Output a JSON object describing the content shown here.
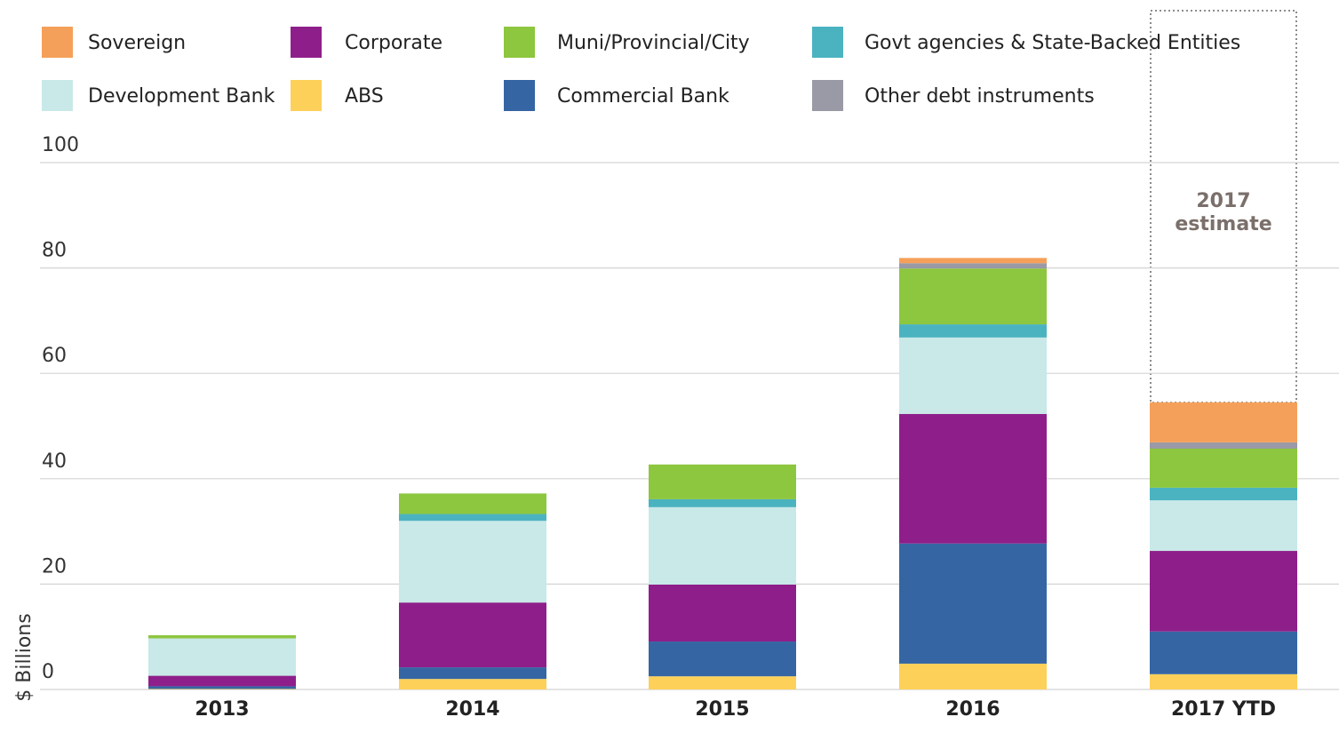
{
  "chart_data": {
    "type": "stacked_bar",
    "y_label": "$ Billions",
    "annotation": "2017 estimate",
    "categories": [
      "2013",
      "2014",
      "2015",
      "2016",
      "2017 YTD"
    ],
    "ylim": [
      0,
      100
    ],
    "yticks": [
      0,
      20,
      40,
      60,
      80,
      100
    ],
    "grid": true,
    "series": [
      {
        "name": "ABS",
        "color": "#fdd05a",
        "values": [
          0.1,
          2.0,
          2.5,
          4.9,
          2.9
        ]
      },
      {
        "name": "Commercial Bank",
        "color": "#3566a3",
        "values": [
          0.5,
          2.2,
          6.6,
          22.8,
          8.1
        ]
      },
      {
        "name": "Corporate",
        "color": "#8e1f8a",
        "values": [
          2.0,
          12.3,
          10.8,
          24.6,
          15.3
        ]
      },
      {
        "name": "Development Bank",
        "color": "#c9e8e8",
        "values": [
          7.1,
          15.5,
          14.7,
          14.5,
          9.6
        ]
      },
      {
        "name": "Govt agencies & State-Backed Entities",
        "color": "#4bb3c0",
        "values": [
          0,
          1.3,
          1.5,
          2.5,
          2.4
        ]
      },
      {
        "name": "Muni/Provincial/City",
        "color": "#8dc63f",
        "values": [
          0.6,
          3.9,
          6.6,
          10.6,
          7.4
        ]
      },
      {
        "name": "Other debt instruments",
        "color": "#9a9aa6",
        "values": [
          0,
          0,
          0,
          1.0,
          1.2
        ]
      },
      {
        "name": "Sovereign",
        "color": "#f5a05a",
        "values": [
          0,
          0,
          0,
          1.0,
          7.6
        ]
      }
    ]
  }
}
